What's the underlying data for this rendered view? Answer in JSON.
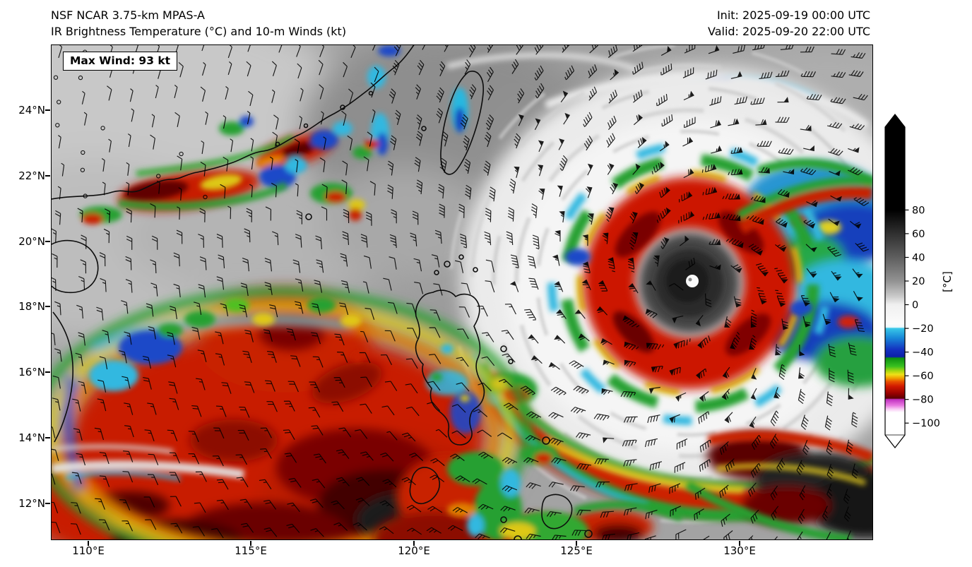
{
  "header": {
    "model": "NSF NCAR 3.75-km MPAS-A",
    "subtitle": "IR Brightness Temperature (°C) and 10-m Winds (kt)",
    "init": "Init: 2025-09-19 00:00 UTC",
    "valid": "Valid: 2025-09-20 22:00 UTC"
  },
  "map": {
    "max_wind_label": "Max Wind: 93 kt",
    "y_ticks": [
      "24°N",
      "22°N",
      "20°N",
      "18°N",
      "16°N",
      "14°N",
      "12°N"
    ],
    "x_ticks": [
      "110°E",
      "115°E",
      "120°E",
      "125°E",
      "130°E"
    ]
  },
  "colorbar": {
    "unit": "[°C]",
    "ticks": [
      "80",
      "60",
      "40",
      "20",
      "0",
      "−20",
      "−40",
      "−60",
      "−80",
      "−100"
    ]
  },
  "chart_data": {
    "type": "heatmap",
    "title": "IR Brightness Temperature (°C) and 10-m Winds (kt)",
    "model": "NSF NCAR 3.75-km MPAS-A",
    "init_time": "2025-09-19 00:00 UTC",
    "valid_time": "2025-09-20 22:00 UTC",
    "max_wind_kt": 93,
    "x_axis": {
      "unit": "°E",
      "ticks": [
        110,
        115,
        120,
        125,
        130
      ],
      "range_approx": [
        108.9,
        134.1
      ]
    },
    "y_axis": {
      "unit": "°N",
      "ticks": [
        24,
        22,
        20,
        18,
        16,
        14,
        12
      ],
      "range_approx": [
        10.9,
        26.0
      ]
    },
    "colorbar": {
      "unit": "°C",
      "ticks": [
        80,
        60,
        40,
        20,
        0,
        -20,
        -40,
        -60,
        -80,
        -100
      ],
      "extend": "both",
      "palette_top_to_bottom": [
        "black",
        "dark gray",
        "gray",
        "white",
        "cyan",
        "blue",
        "green",
        "yellow",
        "orange",
        "red",
        "dark red",
        "magenta",
        "pink",
        "white"
      ]
    },
    "features": [
      {
        "name": "typhoon-with-eye",
        "approx_lon_e": 128.4,
        "approx_lat_n": 18.7,
        "max_wind_kt": 93
      },
      {
        "name": "convective-cluster",
        "region": "South China Sea ~111-118°E, 12-17°N"
      },
      {
        "name": "convective-band",
        "region": "South China coast ~110-116°E, 21-23°N"
      },
      {
        "name": "outer-rainband",
        "region": "curving southeast of typhoon toward 134°E, 12-14°N"
      },
      {
        "name": "convection",
        "region": "central and southern Philippines ~120-126°E, 11-13°N"
      }
    ],
    "wind_barbs": {
      "units": "kt",
      "coverage": "full domain grid"
    }
  }
}
